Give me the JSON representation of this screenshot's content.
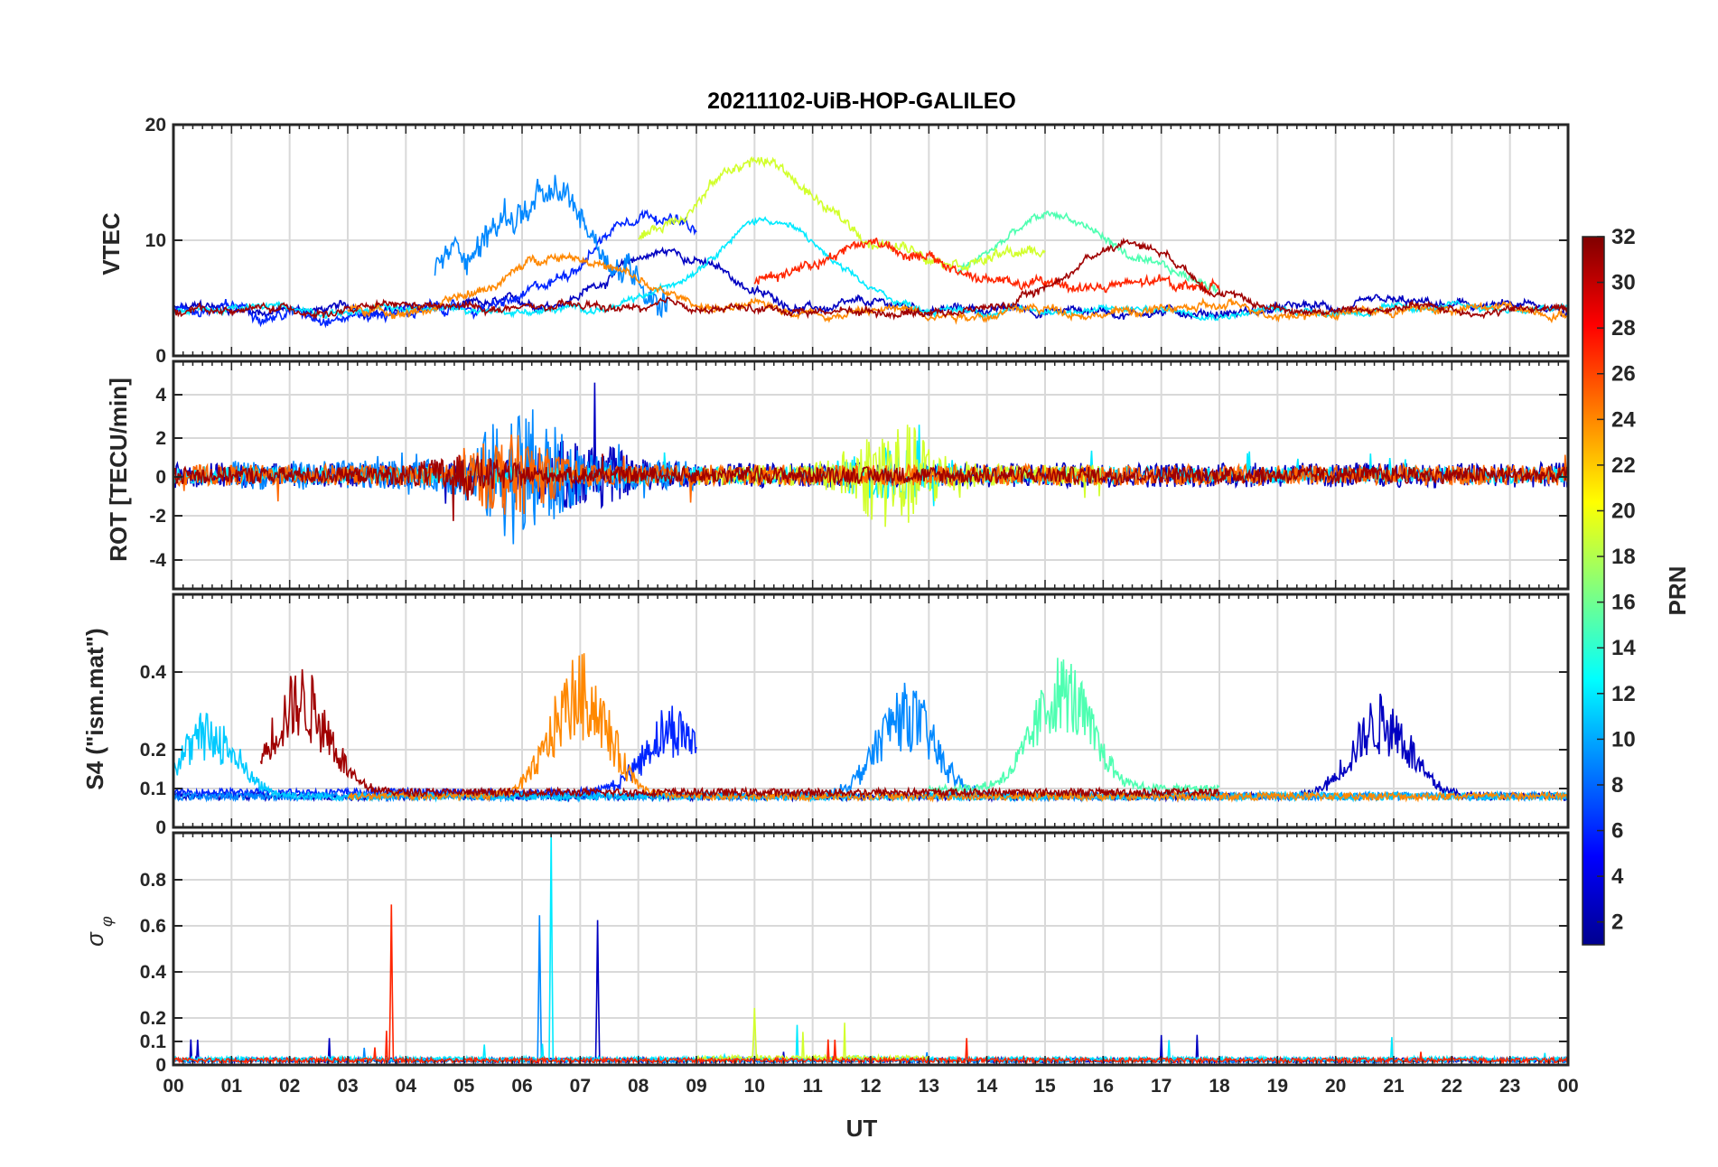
{
  "title": "20211102-UiB-HOP-GALILEO",
  "colors": {
    "axis": "#262626",
    "grid": "#d9d9d9"
  },
  "colorbar": {
    "label": "PRN",
    "min": 1,
    "max": 32,
    "ticks": [
      "2",
      "4",
      "6",
      "8",
      "10",
      "12",
      "14",
      "16",
      "18",
      "20",
      "22",
      "24",
      "26",
      "28",
      "30",
      "32"
    ],
    "colormap": "jet"
  },
  "chart_data": [
    {
      "type": "line",
      "panel": "VTEC",
      "ylabel": "VTEC",
      "ylim": [
        0,
        20
      ],
      "ytick_labels": [
        "0",
        "10",
        "20"
      ],
      "series": [
        {
          "prn": 3,
          "start": 0,
          "end": 24,
          "base": 4,
          "noise": 0.8,
          "peak": 9,
          "peak_at": 8.5
        },
        {
          "prn": 6,
          "start": 0,
          "end": 9,
          "base": 4,
          "noise": 1.0,
          "peak": 13,
          "peak_at": 8.2
        },
        {
          "prn": 9,
          "start": 4.5,
          "end": 8.5,
          "base": 6,
          "noise": 3.0,
          "peak": 13,
          "peak_at": 6.2
        },
        {
          "prn": 12,
          "start": 0,
          "end": 24,
          "base": 4,
          "noise": 0.6,
          "peak": 12,
          "peak_at": 10.2
        },
        {
          "prn": 15,
          "start": 13.5,
          "end": 18,
          "base": 6,
          "noise": 0.8,
          "peak": 12,
          "peak_at": 15.2
        },
        {
          "prn": 19,
          "start": 8,
          "end": 15,
          "base": 9,
          "noise": 1.0,
          "peak": 17,
          "peak_at": 10.0
        },
        {
          "prn": 24,
          "start": 3,
          "end": 24,
          "base": 4,
          "noise": 0.8,
          "peak": 9,
          "peak_at": 6.8
        },
        {
          "prn": 27,
          "start": 10,
          "end": 18,
          "base": 6,
          "noise": 1.0,
          "peak": 10,
          "peak_at": 12.0
        },
        {
          "prn": 31,
          "start": 0,
          "end": 24,
          "base": 4,
          "noise": 0.7,
          "peak": 10,
          "peak_at": 16.5
        }
      ]
    },
    {
      "type": "line",
      "panel": "ROT",
      "ylabel": "ROT [TECU/min]",
      "ylim": [
        -5.5,
        5.5
      ],
      "ytick_labels": [
        "-4",
        "-2",
        "0",
        "2",
        "4"
      ],
      "series": [
        {
          "prn": 3,
          "start": 0,
          "end": 24,
          "amp": 0.6,
          "burst": 2.5,
          "burst_at": 7.0
        },
        {
          "prn": 9,
          "start": 1,
          "end": 9,
          "amp": 0.7,
          "burst": 5.5,
          "burst_at": 6.0
        },
        {
          "prn": 12,
          "start": 0,
          "end": 24,
          "amp": 0.4,
          "burst": 2.0,
          "burst_at": 12.3
        },
        {
          "prn": 19,
          "start": 9,
          "end": 16,
          "amp": 0.5,
          "burst": 4.5,
          "burst_at": 12.4
        },
        {
          "prn": 25,
          "start": 0,
          "end": 24,
          "amp": 0.5,
          "burst": 3.0,
          "burst_at": 5.8
        },
        {
          "prn": 31,
          "start": 0,
          "end": 24,
          "amp": 0.4,
          "burst": 1.2,
          "burst_at": 5.0
        }
      ]
    },
    {
      "type": "line",
      "panel": "S4",
      "ylabel": "S4 (\"ism.mat\")",
      "ylim": [
        0,
        0.6
      ],
      "ytick_labels": [
        "0",
        "0.1",
        "0.2",
        "0.4"
      ],
      "series": [
        {
          "prn": 3,
          "start": 0,
          "end": 24,
          "base": 0.08,
          "peak": 0.35,
          "peak_at": 20.8
        },
        {
          "prn": 6,
          "start": 0,
          "end": 9,
          "base": 0.09,
          "peak": 0.32,
          "peak_at": 8.6
        },
        {
          "prn": 9,
          "start": 0,
          "end": 24,
          "base": 0.08,
          "peak": 0.38,
          "peak_at": 12.6
        },
        {
          "prn": 11,
          "start": 0,
          "end": 24,
          "base": 0.08,
          "peak": 0.3,
          "peak_at": 0.6
        },
        {
          "prn": 15,
          "start": 13,
          "end": 18,
          "base": 0.1,
          "peak": 0.45,
          "peak_at": 15.3
        },
        {
          "prn": 24,
          "start": 3,
          "end": 24,
          "base": 0.08,
          "peak": 0.45,
          "peak_at": 7.0
        },
        {
          "prn": 31,
          "start": 1.5,
          "end": 18,
          "base": 0.09,
          "peak": 0.42,
          "peak_at": 2.2
        }
      ]
    },
    {
      "type": "line",
      "panel": "sigma_phi",
      "ylabel": "σ",
      "ylabel_sub": "φ",
      "ylim": [
        0,
        1.0
      ],
      "ytick_labels": [
        "0",
        "0.1",
        "0.2",
        "0.4",
        "0.6",
        "0.8"
      ],
      "series": [
        {
          "prn": 3,
          "start": 0,
          "end": 24,
          "base": 0.01,
          "spike": 0.6,
          "spike_at": 7.3
        },
        {
          "prn": 9,
          "start": 0,
          "end": 24,
          "base": 0.01,
          "spike": 0.62,
          "spike_at": 6.3
        },
        {
          "prn": 12,
          "start": 0,
          "end": 24,
          "base": 0.015,
          "spike": 0.98,
          "spike_at": 6.5
        },
        {
          "prn": 19,
          "start": 9,
          "end": 13,
          "base": 0.02,
          "spike": 0.22,
          "spike_at": 10.0
        },
        {
          "prn": 27,
          "start": 0,
          "end": 24,
          "base": 0.01,
          "spike": 0.67,
          "spike_at": 3.75
        }
      ]
    }
  ],
  "xaxis": {
    "label": "UT",
    "ticks": [
      "00",
      "01",
      "02",
      "03",
      "04",
      "05",
      "06",
      "07",
      "08",
      "09",
      "10",
      "11",
      "12",
      "13",
      "14",
      "15",
      "16",
      "17",
      "18",
      "19",
      "20",
      "21",
      "22",
      "23",
      "00"
    ]
  }
}
